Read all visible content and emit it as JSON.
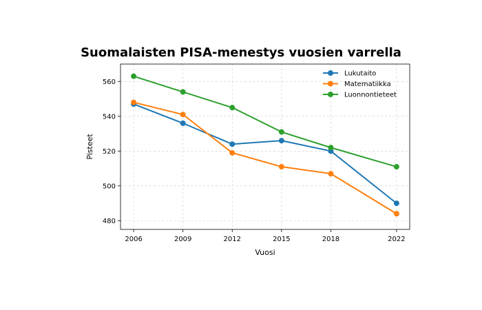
{
  "chart_data": {
    "type": "line",
    "title": "Suomalaisten PISA-menestys vuosien varrella",
    "xlabel": "Vuosi",
    "ylabel": "Pisteet",
    "x": [
      2006,
      2009,
      2012,
      2015,
      2018,
      2022
    ],
    "xticks": [
      "2006",
      "2009",
      "2012",
      "2015",
      "2018",
      "2022"
    ],
    "xlim": [
      2005.2,
      2022.8
    ],
    "ylim": [
      475,
      570
    ],
    "yticks": [
      480,
      500,
      520,
      540,
      560
    ],
    "grid": true,
    "legend_position": "top-right",
    "series": [
      {
        "name": "Lukutaito",
        "color": "#1f77b4",
        "values": [
          547,
          536,
          524,
          526,
          520,
          490
        ]
      },
      {
        "name": "Matematiikka",
        "color": "#ff7f0e",
        "values": [
          548,
          541,
          519,
          511,
          507,
          484
        ]
      },
      {
        "name": "Luonnontieteet",
        "color": "#2ca02c",
        "values": [
          563,
          554,
          545,
          531,
          522,
          511
        ]
      }
    ]
  }
}
